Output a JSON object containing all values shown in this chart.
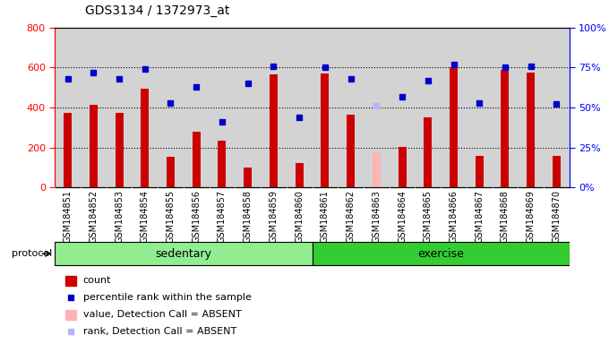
{
  "title": "GDS3134 / 1372973_at",
  "samples": [
    "GSM184851",
    "GSM184852",
    "GSM184853",
    "GSM184854",
    "GSM184855",
    "GSM184856",
    "GSM184857",
    "GSM184858",
    "GSM184859",
    "GSM184860",
    "GSM184861",
    "GSM184862",
    "GSM184863",
    "GSM184864",
    "GSM184865",
    "GSM184866",
    "GSM184867",
    "GSM184868",
    "GSM184869",
    "GSM184870"
  ],
  "bar_values": [
    375,
    415,
    375,
    495,
    155,
    280,
    235,
    100,
    565,
    120,
    570,
    365,
    175,
    205,
    350,
    600,
    160,
    590,
    575,
    160
  ],
  "bar_absent": [
    false,
    false,
    false,
    false,
    false,
    false,
    false,
    false,
    false,
    false,
    false,
    false,
    true,
    false,
    false,
    false,
    false,
    false,
    false,
    false
  ],
  "dot_values": [
    68,
    72,
    68,
    74,
    53,
    63,
    41,
    65,
    76,
    44,
    75,
    68,
    51,
    57,
    67,
    77,
    53,
    75,
    76,
    52
  ],
  "dot_absent": [
    false,
    false,
    false,
    false,
    false,
    false,
    false,
    false,
    false,
    false,
    false,
    false,
    true,
    false,
    false,
    false,
    false,
    false,
    false,
    false
  ],
  "sedentary_count": 10,
  "exercise_count": 10,
  "bar_color": "#cc0000",
  "bar_absent_color": "#ffb3b3",
  "dot_color": "#0000cc",
  "dot_absent_color": "#b3b3ff",
  "left_ylim": [
    0,
    800
  ],
  "right_ylim": [
    0,
    100
  ],
  "left_yticks": [
    0,
    200,
    400,
    600,
    800
  ],
  "right_yticks": [
    0,
    25,
    50,
    75,
    100
  ],
  "right_yticklabels": [
    "0%",
    "25%",
    "50%",
    "75%",
    "100%"
  ],
  "grid_values": [
    200,
    400,
    600
  ],
  "col_bg_even": "#d3d3d3",
  "col_bg_odd": "#e8e8e8",
  "plot_bg": "#ffffff",
  "sedentary_color": "#90ee90",
  "exercise_color": "#32cd32",
  "protocol_label": "protocol",
  "sedentary_label": "sedentary",
  "exercise_label": "exercise",
  "fig_bg": "#ffffff",
  "title_fontsize": 10,
  "tick_fontsize": 7,
  "axis_fontsize": 8
}
